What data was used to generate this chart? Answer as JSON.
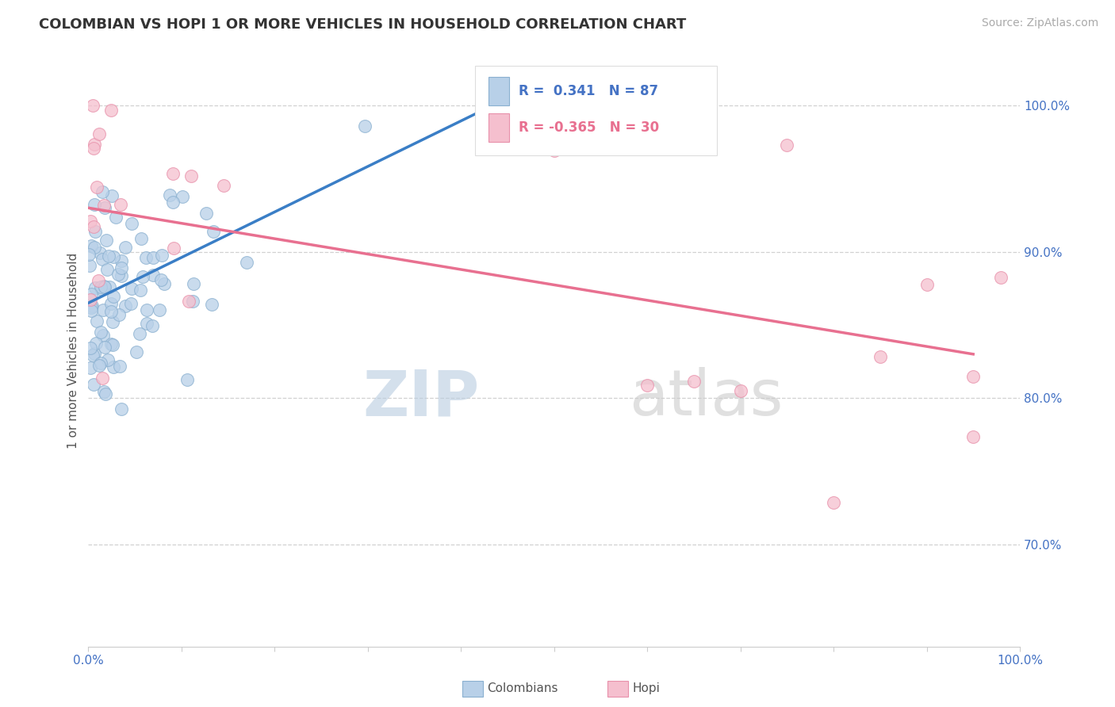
{
  "title": "COLOMBIAN VS HOPI 1 OR MORE VEHICLES IN HOUSEHOLD CORRELATION CHART",
  "source_text": "Source: ZipAtlas.com",
  "ylabel": "1 or more Vehicles in Household",
  "watermark": "ZIPatlas",
  "xlim": [
    0.0,
    1.0
  ],
  "ylim": [
    0.63,
    1.035
  ],
  "ytick_values": [
    0.7,
    0.8,
    0.9,
    1.0
  ],
  "colombian_color": "#b8d0e8",
  "colombian_edge": "#8ab0d0",
  "hopi_color": "#f5bfce",
  "hopi_edge": "#e890aa",
  "blue_line_color": "#3a7ec6",
  "pink_line_color": "#e87090",
  "legend_r_colombian": "R =  0.341",
  "legend_n_colombian": "N = 87",
  "legend_r_hopi": "R = -0.365",
  "legend_n_hopi": "N = 30",
  "legend_label_colombian": "Colombians",
  "legend_label_hopi": "Hopi",
  "background_color": "#ffffff",
  "grid_color": "#cccccc",
  "title_color": "#333333",
  "title_fontsize": 13,
  "source_fontsize": 10,
  "axis_label_fontsize": 11,
  "tick_fontsize": 11,
  "watermark_color": "#ccd8e8",
  "watermark_alpha": 0.55,
  "blue_trendline_x0": 0.0,
  "blue_trendline_y0": 0.865,
  "blue_trendline_x1": 0.45,
  "blue_trendline_y1": 1.005,
  "pink_trendline_x0": 0.0,
  "pink_trendline_y0": 0.93,
  "pink_trendline_x1": 0.95,
  "pink_trendline_y1": 0.83
}
